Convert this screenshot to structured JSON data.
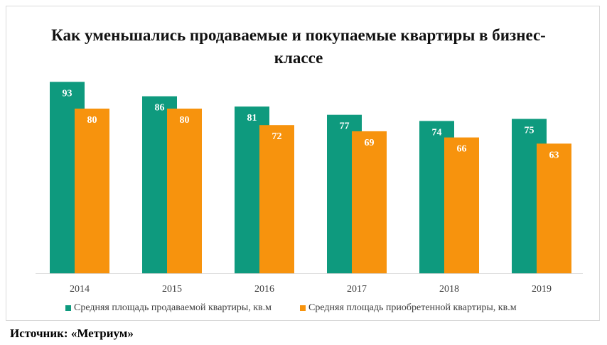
{
  "chart_data": {
    "type": "bar",
    "title": "Как уменьшались продаваемые и покупаемые квартиры в бизнес-классе",
    "categories": [
      "2014",
      "2015",
      "2016",
      "2017",
      "2018",
      "2019"
    ],
    "series": [
      {
        "name": "Средняя площадь продаваемой квартиры, кв.м",
        "values": [
          93,
          86,
          81,
          77,
          74,
          75
        ],
        "color": "#0e9a7e"
      },
      {
        "name": "Средняя площадь приобретенной квартиры, кв.м",
        "values": [
          80,
          80,
          72,
          69,
          66,
          63
        ],
        "color": "#f7930d"
      }
    ],
    "ylim": [
      0,
      100
    ],
    "grid": false,
    "legend_position": "bottom",
    "data_label_color": "#ffffff"
  },
  "source": "Источник: «Метриум»"
}
